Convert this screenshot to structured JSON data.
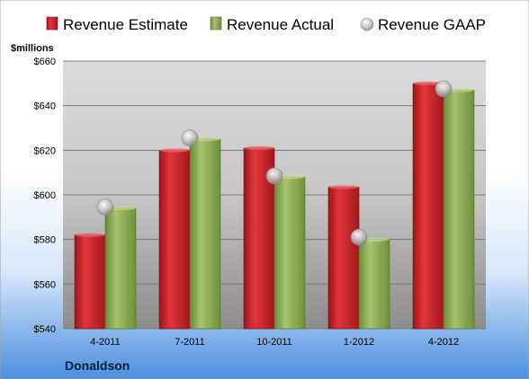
{
  "chart_data": {
    "type": "bar",
    "company": "Donaldson",
    "unit_label": "$millions",
    "categories": [
      "4-2011",
      "7-2011",
      "10-2011",
      "1-2012",
      "4-2012"
    ],
    "series": [
      {
        "name": "Revenue Estimate",
        "type": "bar",
        "color": "#c8262c",
        "values": [
          582,
          620,
          621,
          603.5,
          650
        ]
      },
      {
        "name": "Revenue Actual",
        "type": "bar",
        "color": "#8aa855",
        "values": [
          594,
          625,
          608,
          580,
          647
        ]
      },
      {
        "name": "Revenue GAAP",
        "type": "marker",
        "color": "#c0c0c0",
        "values": [
          594.5,
          625.5,
          608.5,
          581,
          647.5
        ]
      }
    ],
    "y_ticks": [
      "$540",
      "$560",
      "$580",
      "$600",
      "$620",
      "$640",
      "$660"
    ],
    "ylim": [
      540,
      660
    ],
    "grid": true,
    "legend_position": "top"
  }
}
